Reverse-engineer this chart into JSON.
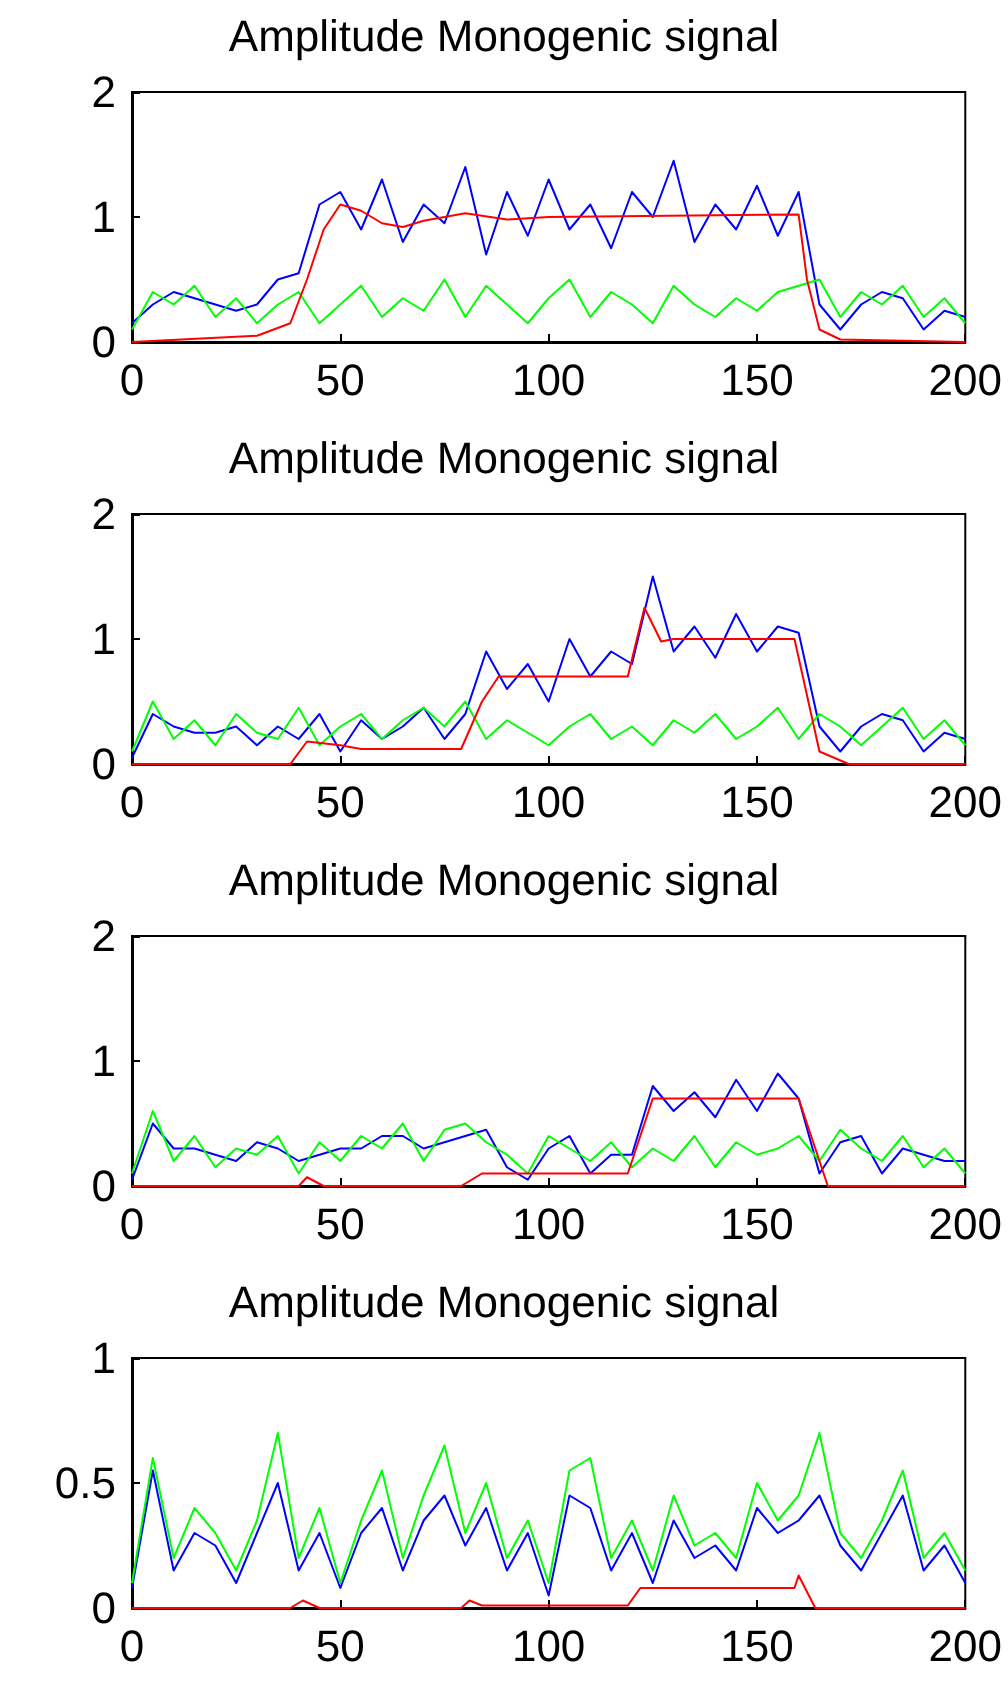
{
  "chart_data": [
    {
      "type": "line",
      "title": "Amplitude Monogenic signal",
      "x": [
        0,
        5,
        10,
        15,
        20,
        25,
        30,
        35,
        40,
        45,
        50,
        55,
        60,
        65,
        70,
        75,
        80,
        85,
        90,
        95,
        100,
        105,
        110,
        115,
        120,
        125,
        130,
        135,
        140,
        145,
        150,
        155,
        160,
        165,
        170,
        175,
        180,
        185,
        190,
        195,
        200
      ],
      "xlim": [
        0,
        200
      ],
      "xticks": [
        0,
        50,
        100,
        150,
        200
      ],
      "ylim": [
        0,
        2
      ],
      "yticks": [
        0,
        1,
        2
      ],
      "series": [
        {
          "color": "#0000ff",
          "values": [
            0.15,
            0.3,
            0.4,
            0.35,
            0.3,
            0.25,
            0.3,
            0.5,
            0.55,
            1.1,
            1.2,
            0.9,
            1.3,
            0.8,
            1.1,
            0.95,
            1.4,
            0.7,
            1.2,
            0.85,
            1.3,
            0.9,
            1.1,
            0.75,
            1.2,
            1.0,
            1.45,
            0.8,
            1.1,
            0.9,
            1.25,
            0.85,
            1.2,
            0.3,
            0.1,
            0.3,
            0.4,
            0.35,
            0.1,
            0.25,
            0.2
          ]
        },
        {
          "color": "#00ff00",
          "values": [
            0.1,
            0.4,
            0.3,
            0.45,
            0.2,
            0.35,
            0.15,
            0.3,
            0.4,
            0.15,
            0.3,
            0.45,
            0.2,
            0.35,
            0.25,
            0.5,
            0.2,
            0.45,
            0.3,
            0.15,
            0.35,
            0.5,
            0.2,
            0.4,
            0.3,
            0.15,
            0.45,
            0.3,
            0.2,
            0.35,
            0.25,
            0.4,
            0.45,
            0.5,
            0.2,
            0.4,
            0.3,
            0.45,
            0.2,
            0.35,
            0.15
          ]
        },
        {
          "color": "#ff0000",
          "x": [
            0,
            30,
            38,
            42,
            46,
            50,
            55,
            60,
            65,
            70,
            80,
            90,
            100,
            160,
            162,
            165,
            170,
            200
          ],
          "values": [
            0,
            0.05,
            0.15,
            0.5,
            0.9,
            1.1,
            1.05,
            0.95,
            0.92,
            0.97,
            1.03,
            0.98,
            1.0,
            1.02,
            0.5,
            0.1,
            0.02,
            0
          ]
        }
      ]
    },
    {
      "type": "line",
      "title": "Amplitude Monogenic signal",
      "x": [
        0,
        5,
        10,
        15,
        20,
        25,
        30,
        35,
        40,
        45,
        50,
        55,
        60,
        65,
        70,
        75,
        80,
        85,
        90,
        95,
        100,
        105,
        110,
        115,
        120,
        125,
        130,
        135,
        140,
        145,
        150,
        155,
        160,
        165,
        170,
        175,
        180,
        185,
        190,
        195,
        200
      ],
      "xlim": [
        0,
        200
      ],
      "xticks": [
        0,
        50,
        100,
        150,
        200
      ],
      "ylim": [
        0,
        2
      ],
      "yticks": [
        0,
        1,
        2
      ],
      "series": [
        {
          "color": "#0000ff",
          "values": [
            0.05,
            0.4,
            0.3,
            0.25,
            0.25,
            0.3,
            0.15,
            0.3,
            0.2,
            0.4,
            0.1,
            0.35,
            0.2,
            0.3,
            0.45,
            0.2,
            0.4,
            0.9,
            0.6,
            0.8,
            0.5,
            1.0,
            0.7,
            0.9,
            0.8,
            1.5,
            0.9,
            1.1,
            0.85,
            1.2,
            0.9,
            1.1,
            1.05,
            0.3,
            0.1,
            0.3,
            0.4,
            0.35,
            0.1,
            0.25,
            0.2
          ]
        },
        {
          "color": "#00ff00",
          "values": [
            0.1,
            0.5,
            0.2,
            0.35,
            0.15,
            0.4,
            0.25,
            0.2,
            0.45,
            0.15,
            0.3,
            0.4,
            0.2,
            0.35,
            0.45,
            0.3,
            0.5,
            0.2,
            0.35,
            0.25,
            0.15,
            0.3,
            0.4,
            0.2,
            0.3,
            0.15,
            0.35,
            0.25,
            0.4,
            0.2,
            0.3,
            0.45,
            0.2,
            0.4,
            0.3,
            0.15,
            0.3,
            0.45,
            0.2,
            0.35,
            0.15
          ]
        },
        {
          "color": "#ff0000",
          "x": [
            0,
            38,
            42,
            50,
            55,
            79,
            84,
            88,
            119,
            123,
            127,
            130,
            159,
            165,
            172,
            200
          ],
          "values": [
            0,
            0,
            0.18,
            0.15,
            0.12,
            0.12,
            0.5,
            0.7,
            0.7,
            1.25,
            0.98,
            1.0,
            1.0,
            0.1,
            0,
            0
          ]
        }
      ]
    },
    {
      "type": "line",
      "title": "Amplitude Monogenic signal",
      "x": [
        0,
        5,
        10,
        15,
        20,
        25,
        30,
        35,
        40,
        45,
        50,
        55,
        60,
        65,
        70,
        75,
        80,
        85,
        90,
        95,
        100,
        105,
        110,
        115,
        120,
        125,
        130,
        135,
        140,
        145,
        150,
        155,
        160,
        165,
        170,
        175,
        180,
        185,
        190,
        195,
        200
      ],
      "xlim": [
        0,
        200
      ],
      "xticks": [
        0,
        50,
        100,
        150,
        200
      ],
      "ylim": [
        0,
        2
      ],
      "yticks": [
        0,
        1,
        2
      ],
      "series": [
        {
          "color": "#0000ff",
          "values": [
            0.05,
            0.5,
            0.3,
            0.3,
            0.25,
            0.2,
            0.35,
            0.3,
            0.2,
            0.25,
            0.3,
            0.3,
            0.4,
            0.4,
            0.3,
            0.35,
            0.4,
            0.45,
            0.15,
            0.05,
            0.3,
            0.4,
            0.1,
            0.25,
            0.25,
            0.8,
            0.6,
            0.75,
            0.55,
            0.85,
            0.6,
            0.9,
            0.7,
            0.1,
            0.35,
            0.4,
            0.1,
            0.3,
            0.25,
            0.2,
            0.2
          ]
        },
        {
          "color": "#00ff00",
          "values": [
            0.1,
            0.6,
            0.2,
            0.4,
            0.15,
            0.3,
            0.25,
            0.4,
            0.1,
            0.35,
            0.2,
            0.4,
            0.3,
            0.5,
            0.2,
            0.45,
            0.5,
            0.35,
            0.25,
            0.1,
            0.4,
            0.3,
            0.2,
            0.35,
            0.15,
            0.3,
            0.2,
            0.4,
            0.15,
            0.35,
            0.25,
            0.3,
            0.4,
            0.2,
            0.45,
            0.3,
            0.2,
            0.4,
            0.15,
            0.3,
            0.1
          ]
        },
        {
          "color": "#ff0000",
          "x": [
            0,
            40,
            42,
            46,
            79,
            84,
            119,
            125,
            160,
            167,
            200
          ],
          "values": [
            0,
            0,
            0.07,
            0,
            0,
            0.1,
            0.1,
            0.7,
            0.7,
            0,
            0
          ]
        }
      ]
    },
    {
      "type": "line",
      "title": "Amplitude Monogenic signal",
      "x": [
        0,
        5,
        10,
        15,
        20,
        25,
        30,
        35,
        40,
        45,
        50,
        55,
        60,
        65,
        70,
        75,
        80,
        85,
        90,
        95,
        100,
        105,
        110,
        115,
        120,
        125,
        130,
        135,
        140,
        145,
        150,
        155,
        160,
        165,
        170,
        175,
        180,
        185,
        190,
        195,
        200
      ],
      "xlim": [
        0,
        200
      ],
      "xticks": [
        0,
        50,
        100,
        150,
        200
      ],
      "ylim": [
        0,
        1
      ],
      "yticks": [
        0,
        0.5,
        1
      ],
      "series": [
        {
          "color": "#0000ff",
          "values": [
            0.08,
            0.55,
            0.15,
            0.3,
            0.25,
            0.1,
            0.3,
            0.5,
            0.15,
            0.3,
            0.08,
            0.3,
            0.4,
            0.15,
            0.35,
            0.45,
            0.25,
            0.4,
            0.15,
            0.3,
            0.05,
            0.45,
            0.4,
            0.15,
            0.3,
            0.1,
            0.35,
            0.2,
            0.25,
            0.15,
            0.4,
            0.3,
            0.35,
            0.45,
            0.25,
            0.15,
            0.3,
            0.45,
            0.15,
            0.25,
            0.1
          ]
        },
        {
          "color": "#00ff00",
          "values": [
            0.1,
            0.6,
            0.2,
            0.4,
            0.3,
            0.15,
            0.35,
            0.7,
            0.2,
            0.4,
            0.1,
            0.35,
            0.55,
            0.2,
            0.45,
            0.65,
            0.3,
            0.5,
            0.2,
            0.35,
            0.1,
            0.55,
            0.6,
            0.2,
            0.35,
            0.15,
            0.45,
            0.25,
            0.3,
            0.2,
            0.5,
            0.35,
            0.45,
            0.7,
            0.3,
            0.2,
            0.35,
            0.55,
            0.2,
            0.3,
            0.15
          ]
        },
        {
          "color": "#ff0000",
          "x": [
            0,
            38,
            41,
            45,
            79,
            81,
            84,
            119,
            122,
            159,
            160,
            164,
            200
          ],
          "values": [
            0,
            0,
            0.03,
            0,
            0,
            0.03,
            0.01,
            0.01,
            0.08,
            0.08,
            0.13,
            0,
            0
          ]
        }
      ]
    }
  ]
}
